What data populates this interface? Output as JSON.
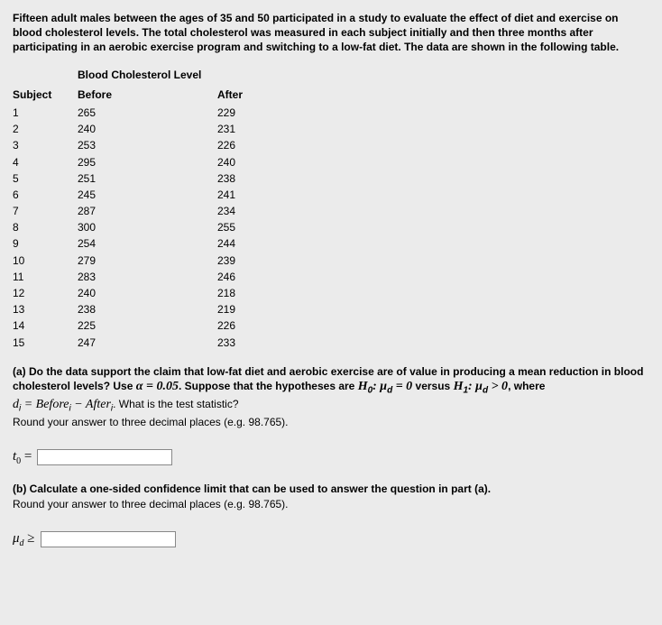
{
  "intro": "Fifteen adult males between the ages of 35 and 50 participated in a study to evaluate the effect of diet and exercise on blood cholesterol levels. The total cholesterol was measured in each subject initially and then three months after participating in an aerobic exercise program and switching to a low-fat diet. The data are shown in the following table.",
  "table": {
    "title": "Blood Cholesterol Level",
    "headers": {
      "subject": "Subject",
      "before": "Before",
      "after": "After"
    },
    "rows": [
      {
        "s": "1",
        "b": "265",
        "a": "229"
      },
      {
        "s": "2",
        "b": "240",
        "a": "231"
      },
      {
        "s": "3",
        "b": "253",
        "a": "226"
      },
      {
        "s": "4",
        "b": "295",
        "a": "240"
      },
      {
        "s": "5",
        "b": "251",
        "a": "238"
      },
      {
        "s": "6",
        "b": "245",
        "a": "241"
      },
      {
        "s": "7",
        "b": "287",
        "a": "234"
      },
      {
        "s": "8",
        "b": "300",
        "a": "255"
      },
      {
        "s": "9",
        "b": "254",
        "a": "244"
      },
      {
        "s": "10",
        "b": "279",
        "a": "239"
      },
      {
        "s": "11",
        "b": "283",
        "a": "246"
      },
      {
        "s": "12",
        "b": "240",
        "a": "218"
      },
      {
        "s": "13",
        "b": "238",
        "a": "219"
      },
      {
        "s": "14",
        "b": "225",
        "a": "226"
      },
      {
        "s": "15",
        "b": "247",
        "a": "233"
      }
    ]
  },
  "qa": {
    "lead": "(a) Do the data support the claim that low-fat diet and aerobic exercise are of value in producing a mean reduction in blood cholesterol levels? Use ",
    "alpha": "α = 0.05",
    "mid1": ". Suppose that the hypotheses are ",
    "h0": "H",
    "h0sub": "0",
    "colon": ": μ",
    "dsub": "d",
    "eq0": " = 0",
    "versus": " versus ",
    "h1": "H",
    "h1sub": "1",
    "gt0": " > 0",
    "where": ", where",
    "di": "d",
    "isub": "i",
    "equals": " = Before",
    "minus": " − After",
    "tail": ". What is the test statistic?",
    "round": "Round your answer to three decimal places (e.g. 98.765)."
  },
  "input_a": {
    "label_t": "t",
    "label_sub": "0",
    "label_eq": " ="
  },
  "qb": {
    "text": "(b) Calculate a one-sided confidence limit that can be used to answer the question in part (a).",
    "round": "Round your answer to three decimal places (e.g. 98.765)."
  },
  "input_b": {
    "label_mu": "μ",
    "label_sub": "d",
    "label_ge": " ≥"
  }
}
